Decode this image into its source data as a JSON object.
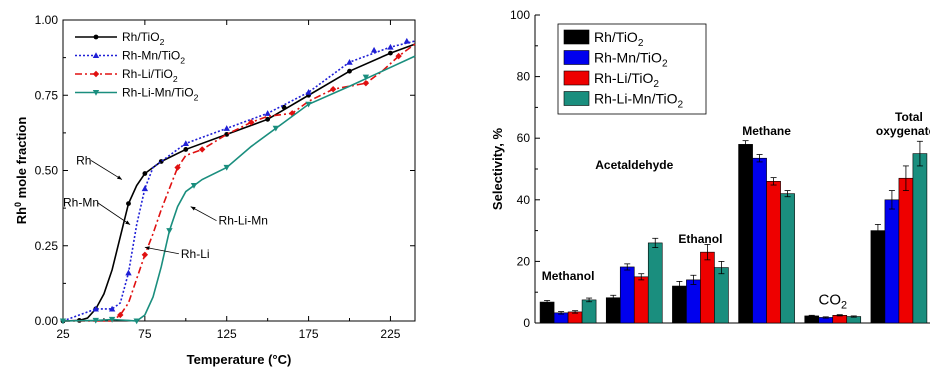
{
  "chart_data": [
    {
      "type": "line",
      "xlabel": "Temperature (°C)",
      "ylabel_main": "Rh",
      "ylabel_sup": "0",
      "ylabel_rest": " mole fraction",
      "xlim": [
        25,
        240
      ],
      "ylim": [
        0,
        1
      ],
      "xticks": [
        25,
        75,
        125,
        175,
        225
      ],
      "yticks": [
        "0.00",
        "0.25",
        "0.50",
        "0.75",
        "1.00"
      ],
      "legend_position": "top-left",
      "series": [
        {
          "name": "Rh/TiO",
          "sub": "2",
          "color": "#000000",
          "dash": "",
          "marker": "circle",
          "points": [
            [
              25,
              0
            ],
            [
              35,
              0.002
            ],
            [
              40,
              0.01
            ],
            [
              45,
              0.04
            ],
            [
              50,
              0.09
            ],
            [
              55,
              0.17
            ],
            [
              60,
              0.28
            ],
            [
              65,
              0.39
            ],
            [
              70,
              0.45
            ],
            [
              75,
              0.49
            ],
            [
              85,
              0.53
            ],
            [
              100,
              0.57
            ],
            [
              125,
              0.62
            ],
            [
              150,
              0.67
            ],
            [
              175,
              0.75
            ],
            [
              200,
              0.83
            ],
            [
              225,
              0.89
            ],
            [
              240,
              0.92
            ]
          ],
          "marker_points": [
            [
              25,
              0
            ],
            [
              35,
              0.002
            ],
            [
              45,
              0.04
            ],
            [
              65,
              0.39
            ],
            [
              75,
              0.49
            ],
            [
              85,
              0.53
            ],
            [
              100,
              0.57
            ],
            [
              125,
              0.62
            ],
            [
              150,
              0.67
            ],
            [
              160,
              0.71
            ],
            [
              175,
              0.75
            ],
            [
              200,
              0.83
            ],
            [
              225,
              0.89
            ]
          ]
        },
        {
          "name": "Rh-Mn/TiO",
          "sub": "2",
          "color": "#1f1fd6",
          "dash": "2,2",
          "marker": "triangle",
          "points": [
            [
              25,
              0
            ],
            [
              45,
              0.04
            ],
            [
              55,
              0.04
            ],
            [
              60,
              0.06
            ],
            [
              65,
              0.16
            ],
            [
              70,
              0.32
            ],
            [
              75,
              0.44
            ],
            [
              80,
              0.51
            ],
            [
              90,
              0.55
            ],
            [
              100,
              0.59
            ],
            [
              125,
              0.64
            ],
            [
              150,
              0.69
            ],
            [
              175,
              0.76
            ],
            [
              200,
              0.86
            ],
            [
              225,
              0.91
            ],
            [
              240,
              0.93
            ]
          ],
          "marker_points": [
            [
              45,
              0.04
            ],
            [
              55,
              0.04
            ],
            [
              65,
              0.16
            ],
            [
              75,
              0.44
            ],
            [
              100,
              0.59
            ],
            [
              125,
              0.64
            ],
            [
              150,
              0.69
            ],
            [
              175,
              0.76
            ],
            [
              200,
              0.86
            ],
            [
              215,
              0.9
            ],
            [
              225,
              0.91
            ],
            [
              235,
              0.93
            ]
          ]
        },
        {
          "name": "Rh-Li/TiO",
          "sub": "2",
          "color": "#e01010",
          "dash": "7,3,2,3",
          "marker": "diamond",
          "points": [
            [
              25,
              0
            ],
            [
              55,
              0
            ],
            [
              60,
              0.02
            ],
            [
              65,
              0.06
            ],
            [
              70,
              0.14
            ],
            [
              75,
              0.22
            ],
            [
              80,
              0.29
            ],
            [
              85,
              0.37
            ],
            [
              90,
              0.44
            ],
            [
              95,
              0.51
            ],
            [
              100,
              0.55
            ],
            [
              110,
              0.57
            ],
            [
              125,
              0.62
            ],
            [
              140,
              0.66
            ],
            [
              150,
              0.68
            ],
            [
              165,
              0.69
            ],
            [
              175,
              0.73
            ],
            [
              190,
              0.77
            ],
            [
              200,
              0.78
            ],
            [
              210,
              0.79
            ],
            [
              220,
              0.83
            ],
            [
              230,
              0.88
            ],
            [
              240,
              0.92
            ]
          ],
          "marker_points": [
            [
              60,
              0.02
            ],
            [
              75,
              0.22
            ],
            [
              95,
              0.51
            ],
            [
              110,
              0.57
            ],
            [
              140,
              0.66
            ],
            [
              165,
              0.69
            ],
            [
              190,
              0.77
            ],
            [
              210,
              0.79
            ],
            [
              230,
              0.88
            ]
          ]
        },
        {
          "name": "Rh-Li-Mn/TiO",
          "sub": "2",
          "color": "#1a8e7e",
          "dash": "",
          "marker": "triangle-down",
          "points": [
            [
              25,
              0
            ],
            [
              45,
              0.002
            ],
            [
              55,
              0.005
            ],
            [
              65,
              0.002
            ],
            [
              70,
              0
            ],
            [
              75,
              0.02
            ],
            [
              80,
              0.08
            ],
            [
              85,
              0.18
            ],
            [
              90,
              0.3
            ],
            [
              95,
              0.38
            ],
            [
              100,
              0.43
            ],
            [
              110,
              0.47
            ],
            [
              125,
              0.51
            ],
            [
              140,
              0.58
            ],
            [
              160,
              0.66
            ],
            [
              175,
              0.72
            ],
            [
              200,
              0.78
            ],
            [
              220,
              0.83
            ],
            [
              240,
              0.88
            ]
          ],
          "marker_points": [
            [
              25,
              0
            ],
            [
              45,
              0.002
            ],
            [
              55,
              0.005
            ],
            [
              70,
              0
            ],
            [
              90,
              0.3
            ],
            [
              105,
              0.45
            ],
            [
              125,
              0.51
            ],
            [
              155,
              0.64
            ],
            [
              175,
              0.72
            ],
            [
              210,
              0.81
            ]
          ]
        }
      ],
      "annotations": [
        {
          "text": "Rh",
          "x": 33,
          "y": 0.52,
          "ax": 61,
          "ay": 0.47
        },
        {
          "text": "Rh-Mn",
          "x": 25,
          "y": 0.38,
          "ax": 66,
          "ay": 0.32
        },
        {
          "text": "Rh-Li",
          "x": 97,
          "y": 0.21,
          "ax": 75,
          "ay": 0.245
        },
        {
          "text": "Rh-Li-Mn",
          "x": 120,
          "y": 0.32,
          "ax": 103,
          "ay": 0.38
        }
      ]
    },
    {
      "type": "bar",
      "ylabel": "Selectivity, %",
      "ylim": [
        0,
        100
      ],
      "yticks": [
        0,
        20,
        40,
        60,
        80,
        100
      ],
      "legend_position": "top-left",
      "categories": [
        "Methanol",
        "Acetaldehyde",
        "Ethanol",
        "Methane",
        "CO",
        "Total oxygenates"
      ],
      "category_labels": [
        {
          "lines": [
            "Methanol"
          ],
          "y": 14
        },
        {
          "lines": [
            "Acetaldehyde"
          ],
          "y": 50
        },
        {
          "lines": [
            "Ethanol"
          ],
          "y": 26
        },
        {
          "lines": [
            "Methane"
          ],
          "y": 61
        },
        {
          "lines": [
            "CO"
          ],
          "sub": "2",
          "y": 6
        },
        {
          "lines": [
            "Total",
            "oxygenates"
          ],
          "y": 61
        }
      ],
      "series": [
        {
          "name": "Rh/TiO",
          "sub": "2",
          "color": "#000000",
          "values": [
            6.8,
            8.2,
            12,
            58,
            2.3,
            30
          ],
          "errors": [
            0.5,
            0.8,
            1.5,
            1.2,
            0.2,
            2
          ]
        },
        {
          "name": "Rh-Mn/TiO",
          "sub": "2",
          "color": "#0000ee",
          "values": [
            3.3,
            18.2,
            14,
            53.5,
            1.8,
            40
          ],
          "errors": [
            0.4,
            1,
            1.5,
            1.2,
            0.2,
            3
          ]
        },
        {
          "name": "Rh-Li/TiO",
          "sub": "2",
          "color": "#ee0000",
          "values": [
            3.6,
            15,
            23,
            46,
            2.5,
            47
          ],
          "errors": [
            0.4,
            1,
            2.5,
            1.2,
            0.2,
            4
          ]
        },
        {
          "name": "Rh-Li-Mn/TiO",
          "sub": "2",
          "color": "#1a8e7e",
          "values": [
            7.5,
            26,
            18,
            42,
            2.1,
            55
          ],
          "errors": [
            0.6,
            1.5,
            2,
            1,
            0.2,
            4
          ]
        }
      ]
    }
  ]
}
